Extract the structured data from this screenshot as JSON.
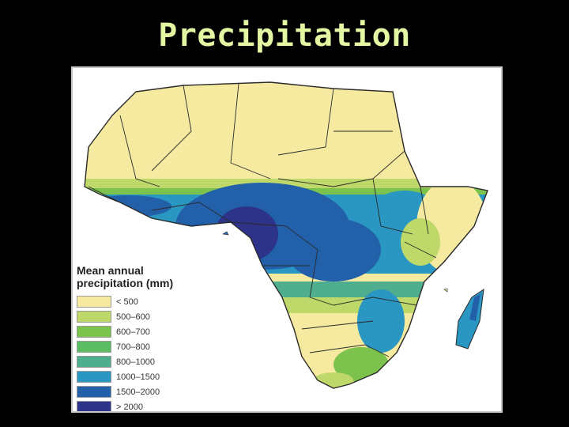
{
  "slide": {
    "title": "Precipitation"
  },
  "map": {
    "legend_title": "Mean annual precipitation (mm)",
    "legend": [
      {
        "label": "< 500",
        "color": "#f5eaa0"
      },
      {
        "label": "500–600",
        "color": "#bfd86a"
      },
      {
        "label": "600–700",
        "color": "#7cc34e"
      },
      {
        "label": "700–800",
        "color": "#5bbd63"
      },
      {
        "label": "800–1000",
        "color": "#4fae8e"
      },
      {
        "label": "1000–1500",
        "color": "#2a96c2"
      },
      {
        "label": "1500–2000",
        "color": "#2260aa"
      },
      {
        "label": "> 2000",
        "color": "#2c3389"
      }
    ]
  }
}
